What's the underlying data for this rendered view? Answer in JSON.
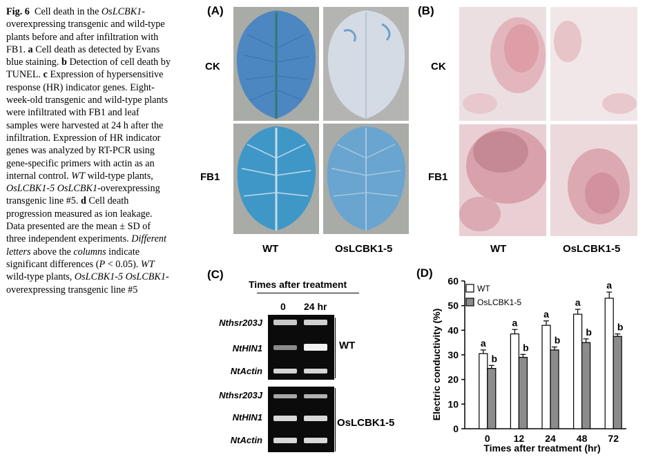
{
  "caption": {
    "fig_label": "Fig. 6",
    "s1": "Cell death in the",
    "s2": "OsLCBK1",
    "s3": "-overexpressing transgenic and wild-type plants before and after infiltration with FB1.",
    "a": "a",
    "s4": "Cell death as detected by Evans blue staining.",
    "b": "b",
    "s5": "Detection of cell death by TUNEL.",
    "c": "c",
    "s6": "Expression of hypersensitive response (HR) indicator genes. Eight-week-old transgenic and wild-type plants were infiltrated with FB1 and leaf samples were harvested at 24 h after the infiltration. Expression of HR indicator genes was analyzed by RT-PCR using gene-specific primers with actin as an internal control.",
    "s7": "WT",
    "s8": "wild-type plants,",
    "s9": "OsLCBK1-5 OsLCBK1",
    "s10": "-overexpressing transgenic line #5.",
    "d": "d",
    "s11": "Cell death progression measured as ion leakage. Data presented are the mean ± SD of three independent experiments.",
    "s12": "Different letters",
    "s13": "above the",
    "s14": "columns",
    "s15": "indicate significant differences (",
    "s16": "P",
    "s17": "< 0.05).",
    "s18": "WT",
    "s19": "wild-type plants,",
    "s20": "OsLCBK1-5 OsLCBK1",
    "s21": "-overexpressing transgenic line #5"
  },
  "panelA": {
    "label": "(A)",
    "row1": "CK",
    "row2": "FB1",
    "col1": "WT",
    "col2": "OsLCBK1-5"
  },
  "panelB": {
    "label": "(B)",
    "row1": "CK",
    "row2": "FB1",
    "col1": "WT",
    "col2": "OsLCBK1-5"
  },
  "panelC": {
    "label": "(C)",
    "title": "Times after treatment",
    "t0": "0",
    "t1": "24 hr",
    "genes_wt": [
      "Nthsr203J",
      "NtHIN1",
      "NtActin"
    ],
    "genes_tg": [
      "Nthsr203J",
      "NtHIN1",
      "NtActin"
    ],
    "group_wt": "WT",
    "group_tg": "OsLCBK1-5"
  },
  "panelD": {
    "label": "(D)"
  },
  "chart_data": {
    "type": "bar",
    "xlabel": "Times after treatment (hr)",
    "ylabel": "Electric conductivity (%)",
    "categories": [
      "0",
      "12",
      "24",
      "48",
      "72"
    ],
    "ylim": [
      0,
      60
    ],
    "yticks": [
      0,
      10,
      20,
      30,
      40,
      50,
      60
    ],
    "legend_position": "top-left",
    "series": [
      {
        "name": "WT",
        "color": "#ffffff",
        "values": [
          30.5,
          38.5,
          42,
          46.5,
          53
        ],
        "errors": [
          1.5,
          1.8,
          1.8,
          2.0,
          2.5
        ],
        "letters": [
          "a",
          "a",
          "a",
          "a",
          "a"
        ]
      },
      {
        "name": "OsLCBK1-5",
        "color": "#8c8c8c",
        "values": [
          24.5,
          29,
          32,
          35,
          37.5
        ],
        "errors": [
          1.2,
          1.2,
          1.2,
          1.5,
          1.0
        ],
        "letters": [
          "b",
          "b",
          "b",
          "b",
          "b"
        ]
      }
    ]
  }
}
